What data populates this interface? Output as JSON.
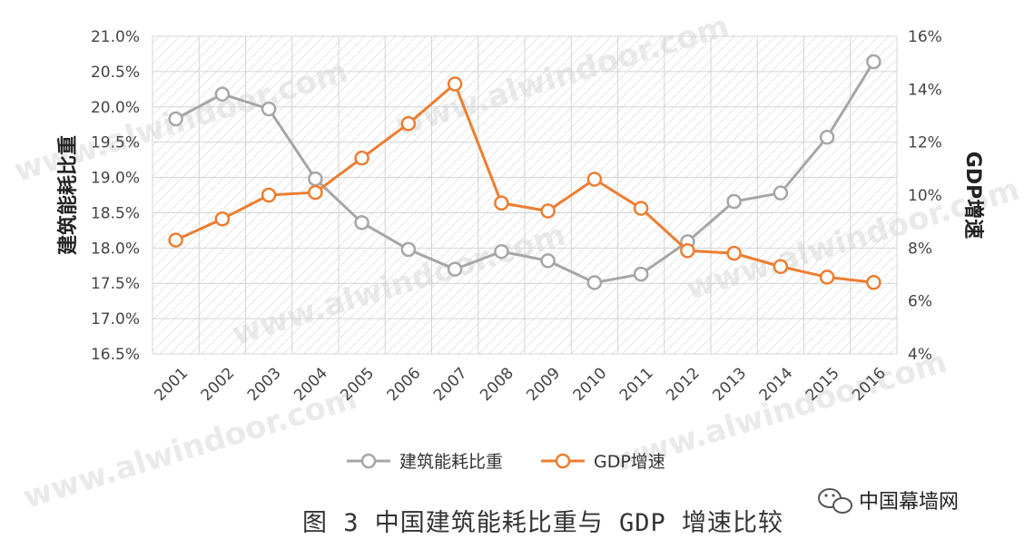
{
  "chart_data": {
    "type": "line",
    "categories": [
      "2001",
      "2002",
      "2003",
      "2004",
      "2005",
      "2006",
      "2007",
      "2008",
      "2009",
      "2010",
      "2011",
      "2012",
      "2013",
      "2014",
      "2015",
      "2016"
    ],
    "series": [
      {
        "name": "建筑能耗比重",
        "axis": "left",
        "color": "#a6a6a6",
        "values": [
          19.83,
          20.18,
          19.97,
          18.98,
          18.36,
          17.98,
          17.7,
          17.95,
          17.82,
          17.51,
          17.63,
          18.09,
          18.66,
          18.78,
          19.57,
          20.64
        ]
      },
      {
        "name": "GDP增速",
        "axis": "right",
        "color": "#ed7d31",
        "values": [
          8.3,
          9.1,
          10.0,
          10.1,
          11.4,
          12.7,
          14.2,
          9.7,
          9.4,
          10.6,
          9.5,
          7.9,
          7.8,
          7.3,
          6.9,
          6.7
        ]
      }
    ],
    "left_axis": {
      "label": "建筑能耗比重",
      "ylim": [
        16.5,
        21.0
      ],
      "ticks": [
        "16.5%",
        "17.0%",
        "17.5%",
        "18.0%",
        "18.5%",
        "19.0%",
        "19.5%",
        "20.0%",
        "20.5%",
        "21.0%"
      ]
    },
    "right_axis": {
      "label": "GDP增速",
      "ylim": [
        4,
        16
      ],
      "ticks": [
        "4%",
        "6%",
        "8%",
        "10%",
        "12%",
        "14%",
        "16%"
      ]
    },
    "grid": true,
    "legend": "bottom-center"
  },
  "caption": "图 3 中国建筑能耗比重与 GDP 增速比较",
  "logo": {
    "text": "中国幕墙网",
    "icon": "wechat-icon"
  },
  "watermark": "www.alwindoor.com",
  "colors": {
    "grey_series": "#a6a6a6",
    "orange_series": "#ed7d31",
    "grid": "#dcdcdc",
    "background": "#ffffff"
  }
}
